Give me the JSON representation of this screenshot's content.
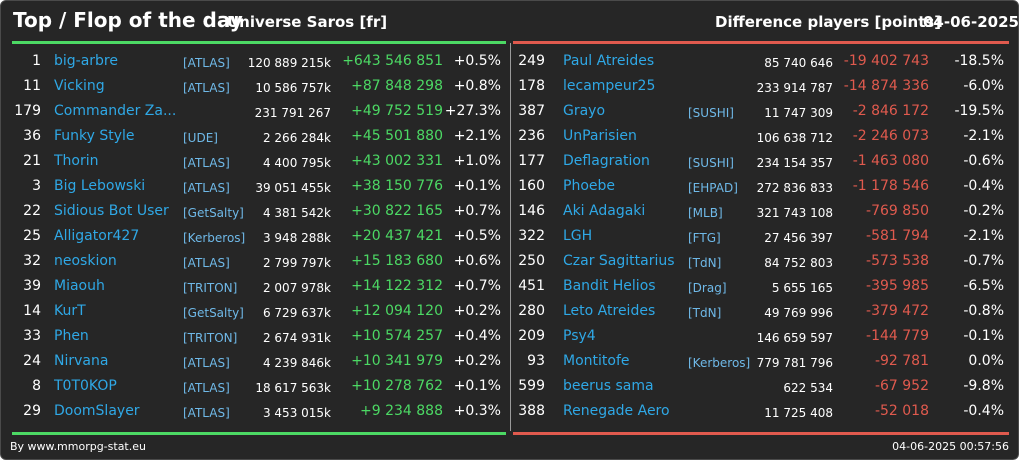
{
  "header": {
    "title": "Top / Flop of the day",
    "universe": "Universe Saros [fr]",
    "metric": "Difference players [points]",
    "date": "04-06-2025"
  },
  "colors": {
    "positive": "#4cd964",
    "negative": "#e05a4e",
    "name_link": "#2fa8e6",
    "background": "#262626"
  },
  "top": [
    {
      "rank": "1",
      "name": "big-arbre",
      "alliance": "[ATLAS]",
      "points": "120 889 215k",
      "delta": "+643 546 851",
      "pct": "+0.5%"
    },
    {
      "rank": "11",
      "name": "Vicking",
      "alliance": "[ATLAS]",
      "points": "10 586 757k",
      "delta": "+87 848 298",
      "pct": "+0.8%"
    },
    {
      "rank": "179",
      "name": "Commander Za...",
      "alliance": "",
      "points": "231 791 267",
      "delta": "+49 752 519",
      "pct": "+27.3%"
    },
    {
      "rank": "36",
      "name": "Funky Style",
      "alliance": "[UDE]",
      "points": "2 266 284k",
      "delta": "+45 501 880",
      "pct": "+2.1%"
    },
    {
      "rank": "21",
      "name": "Thorin",
      "alliance": "[ATLAS]",
      "points": "4 400 795k",
      "delta": "+43 002 331",
      "pct": "+1.0%"
    },
    {
      "rank": "3",
      "name": "Big Lebowski",
      "alliance": "[ATLAS]",
      "points": "39 051 455k",
      "delta": "+38 150 776",
      "pct": "+0.1%"
    },
    {
      "rank": "22",
      "name": "Sidious Bot User",
      "alliance": "[GetSalty]",
      "points": "4 381 542k",
      "delta": "+30 822 165",
      "pct": "+0.7%"
    },
    {
      "rank": "25",
      "name": "Alligator427",
      "alliance": "[Kerberos]",
      "points": "3 948 288k",
      "delta": "+20 437 421",
      "pct": "+0.5%"
    },
    {
      "rank": "32",
      "name": "neoskion",
      "alliance": "[ATLAS]",
      "points": "2 799 797k",
      "delta": "+15 183 680",
      "pct": "+0.6%"
    },
    {
      "rank": "39",
      "name": "Miaouh",
      "alliance": "[TRITON]",
      "points": "2 007 978k",
      "delta": "+14 122 312",
      "pct": "+0.7%"
    },
    {
      "rank": "14",
      "name": "KurT",
      "alliance": "[GetSalty]",
      "points": "6 729 637k",
      "delta": "+12 094 120",
      "pct": "+0.2%"
    },
    {
      "rank": "33",
      "name": "Phen",
      "alliance": "[TRITON]",
      "points": "2 674 931k",
      "delta": "+10 574 257",
      "pct": "+0.4%"
    },
    {
      "rank": "24",
      "name": "Nirvana",
      "alliance": "[ATLAS]",
      "points": "4 239 846k",
      "delta": "+10 341 979",
      "pct": "+0.2%"
    },
    {
      "rank": "8",
      "name": "T0T0KOP",
      "alliance": "[ATLAS]",
      "points": "18 617 563k",
      "delta": "+10 278 762",
      "pct": "+0.1%"
    },
    {
      "rank": "29",
      "name": "DoomSlayer",
      "alliance": "[ATLAS]",
      "points": "3 453 015k",
      "delta": "+9 234 888",
      "pct": "+0.3%"
    }
  ],
  "flop": [
    {
      "rank": "249",
      "name": "Paul Atreides",
      "alliance": "",
      "points": "85 740 646",
      "delta": "-19 402 743",
      "pct": "-18.5%"
    },
    {
      "rank": "178",
      "name": "lecampeur25",
      "alliance": "",
      "points": "233 914 787",
      "delta": "-14 874 336",
      "pct": "-6.0%"
    },
    {
      "rank": "387",
      "name": "Grayo",
      "alliance": "[SUSHI]",
      "points": "11 747 309",
      "delta": "-2 846 172",
      "pct": "-19.5%"
    },
    {
      "rank": "236",
      "name": "UnParisien",
      "alliance": "",
      "points": "106 638 712",
      "delta": "-2 246 073",
      "pct": "-2.1%"
    },
    {
      "rank": "177",
      "name": "Deflagration",
      "alliance": "[SUSHI]",
      "points": "234 154 357",
      "delta": "-1 463 080",
      "pct": "-0.6%"
    },
    {
      "rank": "160",
      "name": "Phoebe",
      "alliance": "[EHPAD]",
      "points": "272 836 833",
      "delta": "-1 178 546",
      "pct": "-0.4%"
    },
    {
      "rank": "146",
      "name": "Aki Adagaki",
      "alliance": "[MLB]",
      "points": "321 743 108",
      "delta": "-769 850",
      "pct": "-0.2%"
    },
    {
      "rank": "322",
      "name": "LGH",
      "alliance": "[FTG]",
      "points": "27 456 397",
      "delta": "-581 794",
      "pct": "-2.1%"
    },
    {
      "rank": "250",
      "name": "Czar Sagittarius",
      "alliance": "[TdN]",
      "points": "84 752 803",
      "delta": "-573 538",
      "pct": "-0.7%"
    },
    {
      "rank": "451",
      "name": "Bandit Helios",
      "alliance": "[Drag]",
      "points": "5 655 165",
      "delta": "-395 985",
      "pct": "-6.5%"
    },
    {
      "rank": "280",
      "name": "Leto Atreides",
      "alliance": "[TdN]",
      "points": "49 769 996",
      "delta": "-379 472",
      "pct": "-0.8%"
    },
    {
      "rank": "209",
      "name": "Psy4",
      "alliance": "",
      "points": "146 659 597",
      "delta": "-144 779",
      "pct": "-0.1%"
    },
    {
      "rank": "93",
      "name": "Montitofe",
      "alliance": "[Kerberos]",
      "points": "779 781 796",
      "delta": "-92 781",
      "pct": "0.0%"
    },
    {
      "rank": "599",
      "name": "beerus sama",
      "alliance": "",
      "points": "622 534",
      "delta": "-67 952",
      "pct": "-9.8%"
    },
    {
      "rank": "388",
      "name": "Renegade Aero",
      "alliance": "",
      "points": "11 725 408",
      "delta": "-52 018",
      "pct": "-0.4%"
    }
  ],
  "footer": {
    "source": "By www.mmorpg-stat.eu",
    "timestamp": "04-06-2025 00:57:56"
  }
}
